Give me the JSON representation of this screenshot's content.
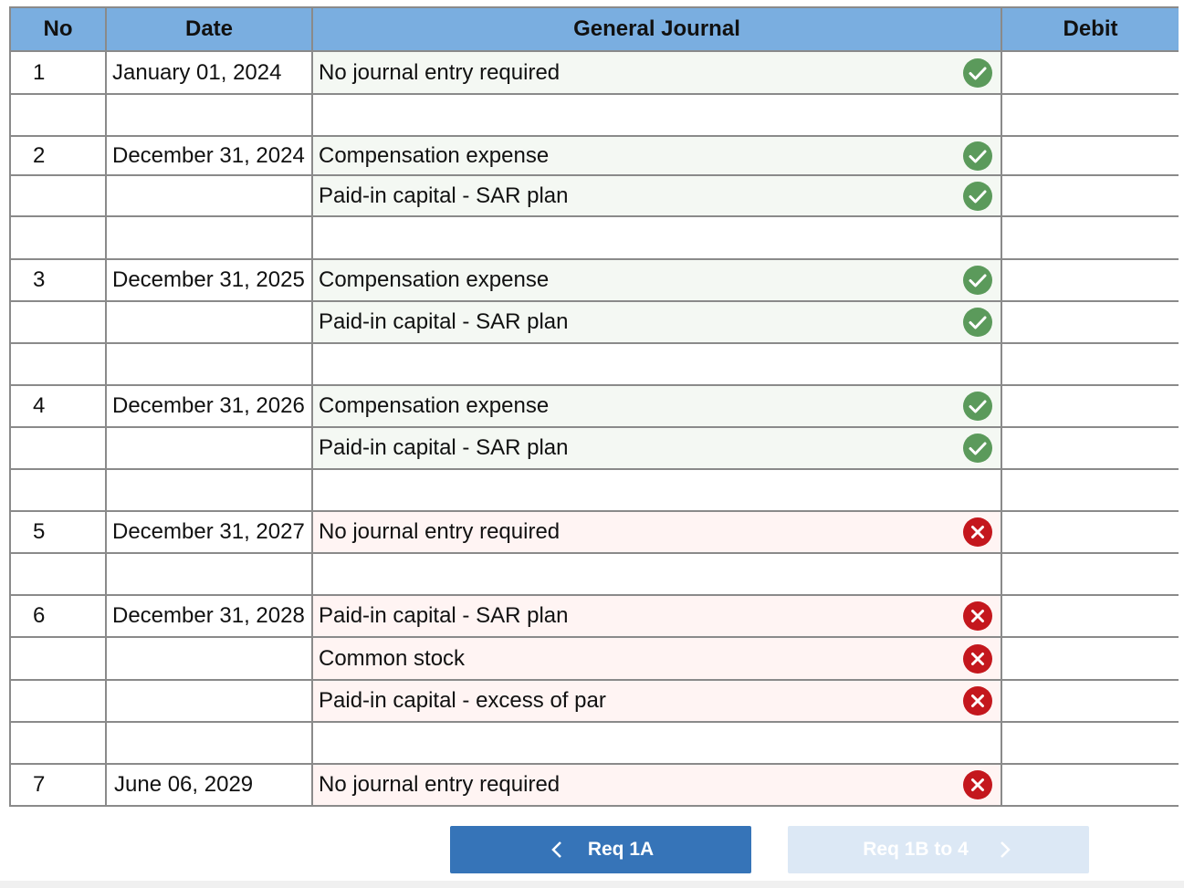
{
  "table": {
    "columns": [
      "No",
      "Date",
      "General Journal",
      "Debit"
    ],
    "rows": [
      {
        "no": 1,
        "date": "January 01, 2024",
        "account": "No journal entry required",
        "status": "correct"
      },
      {},
      {
        "no": 2,
        "date": "December 31, 2024",
        "account": "Compensation expense",
        "status": "correct"
      },
      {
        "account": "Paid-in capital - SAR plan",
        "status": "correct"
      },
      {},
      {
        "no": 3,
        "date": "December 31, 2025",
        "account": "Compensation expense",
        "status": "correct"
      },
      {
        "account": "Paid-in capital - SAR plan",
        "status": "correct"
      },
      {},
      {
        "no": 4,
        "date": "December 31, 2026",
        "account": "Compensation expense",
        "status": "correct"
      },
      {
        "account": "Paid-in capital - SAR plan",
        "status": "correct"
      },
      {},
      {
        "no": 5,
        "date": "December 31, 2027",
        "account": "No journal entry required",
        "status": "incorrect"
      },
      {},
      {
        "no": 6,
        "date": "December 31, 2028",
        "account": "Paid-in capital - SAR plan",
        "status": "incorrect"
      },
      {
        "account": "Common stock",
        "status": "incorrect"
      },
      {
        "account": "Paid-in capital - excess of par",
        "status": "incorrect"
      },
      {},
      {
        "no": 7,
        "date": "June 06, 2029",
        "account": "No journal entry required",
        "status": "incorrect"
      }
    ]
  },
  "buttons": {
    "previous": "Req 1A",
    "next": "Req 1B to 4"
  }
}
